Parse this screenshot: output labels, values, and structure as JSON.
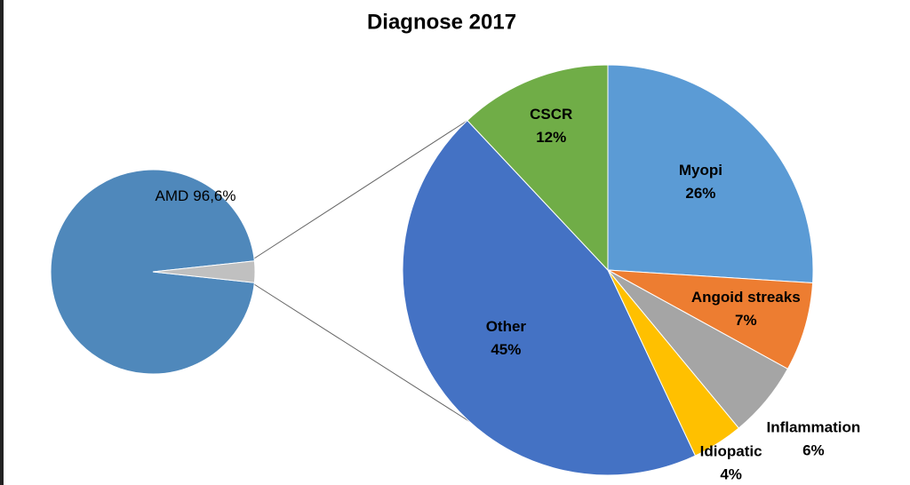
{
  "chart_data": [
    {
      "type": "pie",
      "title": "Diagnose 2017",
      "categories": [
        "AMD",
        null
      ],
      "values": [
        96.6,
        3.4
      ],
      "value_labels": [
        "96,6%",
        null
      ],
      "colors": [
        "#4f88bb",
        "#c0c0c0"
      ]
    },
    {
      "type": "pie",
      "categories": [
        "Myopi",
        "Angoid streaks",
        "Inflammation",
        "Idiopatic",
        "Other",
        "CSCR"
      ],
      "values": [
        26,
        7,
        6,
        4,
        45,
        12
      ],
      "value_labels": [
        "26%",
        "7%",
        "6%",
        "4%",
        "45%",
        "12%"
      ],
      "colors": [
        "#5b9bd5",
        "#ed7d31",
        "#a5a5a5",
        "#ffc000",
        "#4472c4",
        "#70ad47"
      ]
    }
  ]
}
